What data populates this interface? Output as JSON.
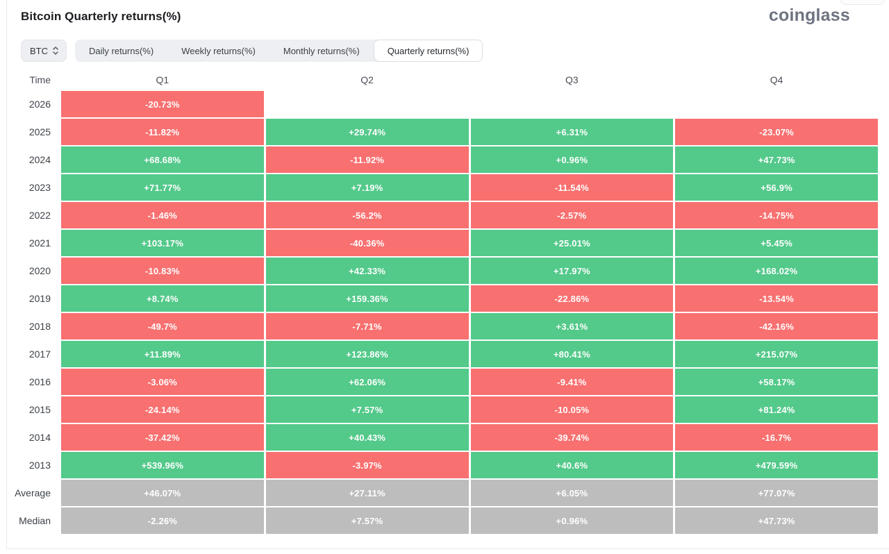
{
  "header": {
    "title": "Bitcoin Quarterly returns(%)",
    "logo": "coinglass"
  },
  "toolbar": {
    "coin_selector": {
      "label": "BTC",
      "icon": "updown-caret-icon"
    },
    "tabs": [
      {
        "label": "Daily returns(%)",
        "active": false
      },
      {
        "label": "Weekly returns(%)",
        "active": false
      },
      {
        "label": "Monthly returns(%)",
        "active": false
      },
      {
        "label": "Quarterly returns(%)",
        "active": true
      }
    ]
  },
  "table": {
    "time_header": "Time",
    "columns": [
      "Q1",
      "Q2",
      "Q3",
      "Q4"
    ],
    "rows": [
      {
        "label": "2026",
        "cells": [
          {
            "text": "-20.73%",
            "tone": "neg"
          },
          null,
          null,
          null
        ]
      },
      {
        "label": "2025",
        "cells": [
          {
            "text": "-11.82%",
            "tone": "neg"
          },
          {
            "text": "+29.74%",
            "tone": "pos"
          },
          {
            "text": "+6.31%",
            "tone": "pos"
          },
          {
            "text": "-23.07%",
            "tone": "neg"
          }
        ]
      },
      {
        "label": "2024",
        "cells": [
          {
            "text": "+68.68%",
            "tone": "pos"
          },
          {
            "text": "-11.92%",
            "tone": "neg"
          },
          {
            "text": "+0.96%",
            "tone": "pos"
          },
          {
            "text": "+47.73%",
            "tone": "pos"
          }
        ]
      },
      {
        "label": "2023",
        "cells": [
          {
            "text": "+71.77%",
            "tone": "pos"
          },
          {
            "text": "+7.19%",
            "tone": "pos"
          },
          {
            "text": "-11.54%",
            "tone": "neg"
          },
          {
            "text": "+56.9%",
            "tone": "pos"
          }
        ]
      },
      {
        "label": "2022",
        "cells": [
          {
            "text": "-1.46%",
            "tone": "neg"
          },
          {
            "text": "-56.2%",
            "tone": "neg"
          },
          {
            "text": "-2.57%",
            "tone": "neg"
          },
          {
            "text": "-14.75%",
            "tone": "neg"
          }
        ]
      },
      {
        "label": "2021",
        "cells": [
          {
            "text": "+103.17%",
            "tone": "pos"
          },
          {
            "text": "-40.36%",
            "tone": "neg"
          },
          {
            "text": "+25.01%",
            "tone": "pos"
          },
          {
            "text": "+5.45%",
            "tone": "pos"
          }
        ]
      },
      {
        "label": "2020",
        "cells": [
          {
            "text": "-10.83%",
            "tone": "neg"
          },
          {
            "text": "+42.33%",
            "tone": "pos"
          },
          {
            "text": "+17.97%",
            "tone": "pos"
          },
          {
            "text": "+168.02%",
            "tone": "pos"
          }
        ]
      },
      {
        "label": "2019",
        "cells": [
          {
            "text": "+8.74%",
            "tone": "pos"
          },
          {
            "text": "+159.36%",
            "tone": "pos"
          },
          {
            "text": "-22.86%",
            "tone": "neg"
          },
          {
            "text": "-13.54%",
            "tone": "neg"
          }
        ]
      },
      {
        "label": "2018",
        "cells": [
          {
            "text": "-49.7%",
            "tone": "neg"
          },
          {
            "text": "-7.71%",
            "tone": "neg"
          },
          {
            "text": "+3.61%",
            "tone": "pos"
          },
          {
            "text": "-42.16%",
            "tone": "neg"
          }
        ]
      },
      {
        "label": "2017",
        "cells": [
          {
            "text": "+11.89%",
            "tone": "pos"
          },
          {
            "text": "+123.86%",
            "tone": "pos"
          },
          {
            "text": "+80.41%",
            "tone": "pos"
          },
          {
            "text": "+215.07%",
            "tone": "pos"
          }
        ]
      },
      {
        "label": "2016",
        "cells": [
          {
            "text": "-3.06%",
            "tone": "neg"
          },
          {
            "text": "+62.06%",
            "tone": "pos"
          },
          {
            "text": "-9.41%",
            "tone": "neg"
          },
          {
            "text": "+58.17%",
            "tone": "pos"
          }
        ]
      },
      {
        "label": "2015",
        "cells": [
          {
            "text": "-24.14%",
            "tone": "neg"
          },
          {
            "text": "+7.57%",
            "tone": "pos"
          },
          {
            "text": "-10.05%",
            "tone": "neg"
          },
          {
            "text": "+81.24%",
            "tone": "pos"
          }
        ]
      },
      {
        "label": "2014",
        "cells": [
          {
            "text": "-37.42%",
            "tone": "neg"
          },
          {
            "text": "+40.43%",
            "tone": "pos"
          },
          {
            "text": "-39.74%",
            "tone": "neg"
          },
          {
            "text": "-16.7%",
            "tone": "neg"
          }
        ]
      },
      {
        "label": "2013",
        "cells": [
          {
            "text": "+539.96%",
            "tone": "pos"
          },
          {
            "text": "-3.97%",
            "tone": "neg"
          },
          {
            "text": "+40.6%",
            "tone": "pos"
          },
          {
            "text": "+479.59%",
            "tone": "pos"
          }
        ]
      },
      {
        "label": "Average",
        "cells": [
          {
            "text": "+46.07%",
            "tone": "neu"
          },
          {
            "text": "+27.11%",
            "tone": "neu"
          },
          {
            "text": "+6.05%",
            "tone": "neu"
          },
          {
            "text": "+77.07%",
            "tone": "neu"
          }
        ]
      },
      {
        "label": "Median",
        "cells": [
          {
            "text": "-2.26%",
            "tone": "neu"
          },
          {
            "text": "+7.57%",
            "tone": "neu"
          },
          {
            "text": "+0.96%",
            "tone": "neu"
          },
          {
            "text": "+47.73%",
            "tone": "neu"
          }
        ]
      }
    ]
  },
  "colors": {
    "positive": "#53c98a",
    "negative": "#f87070",
    "neutral": "#bdbdbd"
  },
  "chart_data": {
    "type": "heatmap",
    "title": "Bitcoin Quarterly returns(%)",
    "columns": [
      "Q1",
      "Q2",
      "Q3",
      "Q4"
    ],
    "rows": [
      "2026",
      "2025",
      "2024",
      "2023",
      "2022",
      "2021",
      "2020",
      "2019",
      "2018",
      "2017",
      "2016",
      "2015",
      "2014",
      "2013",
      "Average",
      "Median"
    ],
    "values_pct": [
      [
        -20.73,
        null,
        null,
        null
      ],
      [
        -11.82,
        29.74,
        6.31,
        -23.07
      ],
      [
        68.68,
        -11.92,
        0.96,
        47.73
      ],
      [
        71.77,
        7.19,
        -11.54,
        56.9
      ],
      [
        -1.46,
        -56.2,
        -2.57,
        -14.75
      ],
      [
        103.17,
        -40.36,
        25.01,
        5.45
      ],
      [
        -10.83,
        42.33,
        17.97,
        168.02
      ],
      [
        8.74,
        159.36,
        -22.86,
        -13.54
      ],
      [
        -49.7,
        -7.71,
        3.61,
        -42.16
      ],
      [
        11.89,
        123.86,
        80.41,
        215.07
      ],
      [
        -3.06,
        62.06,
        -9.41,
        58.17
      ],
      [
        -24.14,
        7.57,
        -10.05,
        81.24
      ],
      [
        -37.42,
        40.43,
        -39.74,
        -16.7
      ],
      [
        539.96,
        -3.97,
        40.6,
        479.59
      ],
      [
        46.07,
        27.11,
        6.05,
        77.07
      ],
      [
        -2.26,
        7.57,
        0.96,
        47.73
      ]
    ],
    "legend_position": "none",
    "grid": false,
    "color_rule": "green = positive return, red = negative return, gray = Average/Median summary rows"
  }
}
